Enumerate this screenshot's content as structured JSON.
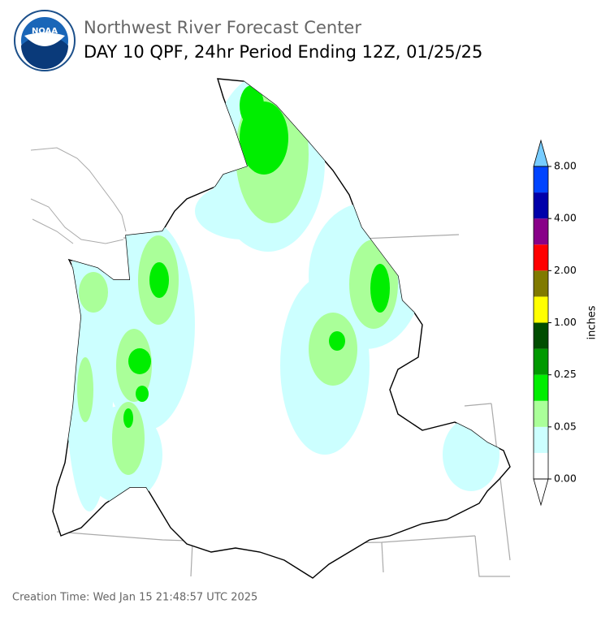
{
  "header": {
    "logo_text": "NOAA",
    "title": "Northwest River Forecast Center",
    "subtitle": "DAY 10 QPF, 24hr Period Ending 12Z, 01/25/25"
  },
  "colorbar": {
    "label": "inches",
    "ticks": [
      "0.00",
      "0.05",
      "0.25",
      "1.00",
      "2.00",
      "4.00",
      "8.00"
    ],
    "colors": [
      "#ffffff",
      "#ccffff",
      "#aaff99",
      "#00ee00",
      "#009900",
      "#004d00",
      "#ffff00",
      "#807a00",
      "#ff0000",
      "#880088",
      "#0000aa",
      "#0044ff"
    ],
    "under_color": "#ffffff",
    "over_color": "#77ccff"
  },
  "footer": {
    "creation_time": "Creation Time: Wed Jan 15 21:48:57 UTC 2025"
  }
}
